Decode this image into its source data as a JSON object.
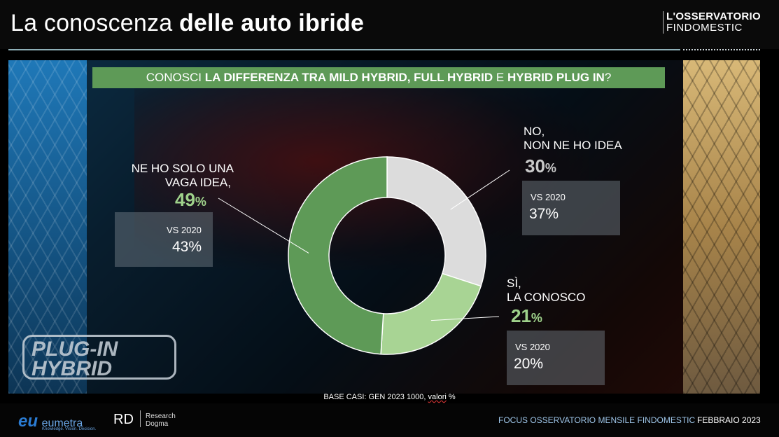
{
  "header": {
    "title_regular": "La conoscenza ",
    "title_bold": "delle auto ibride",
    "brand_line1": "L'OSSERVATORIO",
    "brand_line2": "FINDOMESTIC"
  },
  "background": {
    "badge_line1": "PLUG-IN",
    "badge_line2": "HYBRID"
  },
  "question": {
    "prefix": "CONOSCI ",
    "bold1": "LA DIFFERENZA TRA MILD HYBRID, FULL HYBRID",
    "mid": " E ",
    "bold2": "HYBRID PLUG IN",
    "suffix": "?"
  },
  "colors": {
    "dark_green": "#5e9a57",
    "light_green": "#a8d494",
    "light_gray": "#dcdcdc",
    "pct_green": "#9fd28b",
    "pct_gray": "#c8c8c8"
  },
  "chart_data": {
    "type": "pie",
    "donut": true,
    "title": "CONOSCI LA DIFFERENZA TRA MILD HYBRID, FULL HYBRID E HYBRID PLUG IN?",
    "unit": "%",
    "slices": [
      {
        "label_line1": "NO,",
        "label_line2": "NON NE HO IDEA",
        "value": 30,
        "value_text": "30",
        "vs_label": "VS 2020",
        "vs_value": "37%",
        "color": "#dcdcdc"
      },
      {
        "label_line1": "SÌ,",
        "label_line2": "LA CONOSCO",
        "value": 21,
        "value_text": "21",
        "vs_label": "VS 2020",
        "vs_value": "20%",
        "color": "#a8d494"
      },
      {
        "label_line1": "NE HO SOLO UNA",
        "label_line2": "VAGA IDEA,",
        "value": 49,
        "value_text": "49",
        "vs_label": "VS 2020",
        "vs_value": "43%",
        "color": "#5e9a57"
      }
    ]
  },
  "note": {
    "text": "BASE CASI: GEN 2023 1000, ",
    "underlined": "valori",
    "tail": " %"
  },
  "footer": {
    "eumetra_mark": "eu",
    "eumetra_name": "eumetra",
    "eumetra_tagline": "Knowledge. Vision. Decision.",
    "rd_mark": "RD",
    "rd_line1": "Research",
    "rd_line2": "Dogma",
    "focus": "FOCUS OSSERVATORIO MENSILE FINDOMESTIC",
    "date": "FEBBRAIO 2023"
  }
}
